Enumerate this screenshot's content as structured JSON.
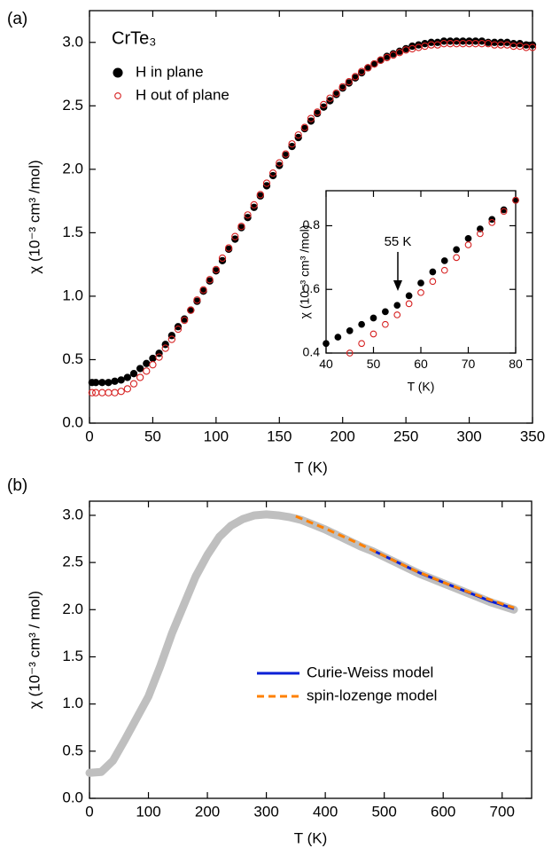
{
  "chart_data": [
    {
      "type": "scatter",
      "label": "(a)",
      "title": "CrTe₃",
      "xlabel": "T (K)",
      "ylabel": "χ (10⁻³ cm³ /mol)",
      "xlim": [
        0,
        350
      ],
      "xticks": [
        0,
        50,
        100,
        150,
        200,
        250,
        300,
        350
      ],
      "ylim": [
        0,
        3.25
      ],
      "yticks": [
        {
          "value": 0,
          "label": "0.0"
        },
        0.5,
        {
          "value": 1,
          "label": "1.0"
        },
        1.5,
        {
          "value": 2,
          "label": "2.0"
        },
        2.5,
        {
          "value": 3,
          "label": "3.0"
        }
      ],
      "legend": "upper left",
      "x": [
        2,
        5,
        10,
        15,
        20,
        25,
        30,
        35,
        40,
        45,
        50,
        55,
        60,
        65,
        70,
        75,
        80,
        85,
        90,
        95,
        100,
        105,
        110,
        115,
        120,
        125,
        130,
        135,
        140,
        145,
        150,
        155,
        160,
        165,
        170,
        175,
        180,
        185,
        190,
        195,
        200,
        205,
        210,
        215,
        220,
        225,
        230,
        235,
        240,
        245,
        250,
        255,
        260,
        265,
        270,
        275,
        280,
        285,
        290,
        295,
        300,
        305,
        310,
        315,
        320,
        325,
        330,
        335,
        340,
        345,
        350
      ],
      "series": [
        {
          "name": "H in plane",
          "color": "#000000",
          "marker": "filled",
          "values": [
            0.32,
            0.32,
            0.32,
            0.32,
            0.33,
            0.34,
            0.36,
            0.39,
            0.43,
            0.47,
            0.51,
            0.55,
            0.62,
            0.69,
            0.76,
            0.82,
            0.89,
            0.96,
            1.04,
            1.12,
            1.2,
            1.28,
            1.37,
            1.45,
            1.54,
            1.62,
            1.7,
            1.79,
            1.87,
            1.95,
            2.03,
            2.11,
            2.18,
            2.25,
            2.32,
            2.38,
            2.44,
            2.49,
            2.54,
            2.59,
            2.64,
            2.68,
            2.72,
            2.76,
            2.8,
            2.83,
            2.86,
            2.89,
            2.91,
            2.93,
            2.95,
            2.97,
            2.98,
            2.99,
            3.0,
            3.0,
            3.01,
            3.01,
            3.01,
            3.01,
            3.01,
            3.01,
            3.01,
            3.0,
            3.0,
            3.0,
            3.0,
            2.99,
            2.99,
            2.98,
            2.98
          ]
        },
        {
          "name": "H out of plane",
          "color": "#d62020",
          "marker": "open",
          "values": [
            0.24,
            0.24,
            0.24,
            0.24,
            0.24,
            0.25,
            0.27,
            0.31,
            0.36,
            0.41,
            0.46,
            0.52,
            0.59,
            0.66,
            0.74,
            0.81,
            0.89,
            0.97,
            1.05,
            1.13,
            1.21,
            1.3,
            1.38,
            1.47,
            1.55,
            1.64,
            1.72,
            1.8,
            1.89,
            1.97,
            2.05,
            2.12,
            2.2,
            2.27,
            2.33,
            2.4,
            2.45,
            2.51,
            2.56,
            2.6,
            2.65,
            2.69,
            2.73,
            2.77,
            2.8,
            2.83,
            2.86,
            2.88,
            2.9,
            2.92,
            2.94,
            2.95,
            2.96,
            2.97,
            2.98,
            2.98,
            2.99,
            2.99,
            2.99,
            2.99,
            2.99,
            2.99,
            2.99,
            2.99,
            2.98,
            2.98,
            2.98,
            2.97,
            2.97,
            2.96,
            2.96
          ]
        }
      ]
    },
    {
      "type": "scatter",
      "xlabel": "T (K)",
      "ylabel": "χ (10⁻³ cm³ /mol)",
      "annotation": "55 K",
      "xlim": [
        40,
        80
      ],
      "xticks": [
        40,
        50,
        60,
        70,
        80
      ],
      "ylim": [
        0.4,
        0.91
      ],
      "yticks": [
        0.4,
        0.6,
        0.8
      ],
      "x": [
        40,
        42.5,
        45,
        47.5,
        50,
        52.5,
        55,
        57.5,
        60,
        62.5,
        65,
        67.5,
        70,
        72.5,
        75,
        77.5,
        80
      ],
      "series": [
        {
          "color": "#000000",
          "marker": "filled",
          "values": [
            0.43,
            0.45,
            0.47,
            0.49,
            0.51,
            0.53,
            0.55,
            0.58,
            0.62,
            0.655,
            0.69,
            0.725,
            0.76,
            0.79,
            0.82,
            0.85,
            0.88
          ]
        },
        {
          "color": "#d62020",
          "marker": "open",
          "values": [
            null,
            null,
            0.4,
            0.43,
            0.46,
            0.49,
            0.52,
            0.555,
            0.59,
            0.625,
            0.66,
            0.7,
            0.74,
            0.775,
            0.81,
            0.845,
            0.88
          ]
        }
      ]
    },
    {
      "type": "line",
      "label": "(b)",
      "xlabel": "T (K)",
      "ylabel": "χ (10⁻³ cm³ / mol)",
      "xlim": [
        0,
        750
      ],
      "xticks": [
        0,
        100,
        200,
        300,
        400,
        500,
        600,
        700
      ],
      "ylim": [
        0,
        3.15
      ],
      "yticks": [
        {
          "value": 0,
          "label": "0.0"
        },
        0.5,
        {
          "value": 1,
          "label": "1.0"
        },
        1.5,
        {
          "value": 2,
          "label": "2.0"
        },
        2.5,
        {
          "value": 3,
          "label": "3.0"
        }
      ],
      "legend": "lower right",
      "series": [
        {
          "color": "#bfbfbf",
          "style": "thick",
          "x": [
            0,
            20,
            40,
            60,
            80,
            100,
            120,
            140,
            160,
            180,
            200,
            220,
            240,
            260,
            280,
            300,
            320,
            340,
            360,
            380,
            400,
            420,
            440,
            460,
            480,
            500,
            520,
            540,
            560,
            580,
            600,
            620,
            640,
            660,
            680,
            700,
            720
          ],
          "values": [
            0.27,
            0.28,
            0.4,
            0.62,
            0.85,
            1.08,
            1.4,
            1.75,
            2.05,
            2.35,
            2.58,
            2.77,
            2.89,
            2.96,
            3.0,
            3.01,
            3.0,
            2.98,
            2.95,
            2.9,
            2.85,
            2.79,
            2.73,
            2.67,
            2.62,
            2.56,
            2.5,
            2.44,
            2.38,
            2.33,
            2.28,
            2.23,
            2.18,
            2.13,
            2.08,
            2.04,
            2.0
          ]
        },
        {
          "name": "Curie-Weiss model",
          "color": "#0a1fd6",
          "style": "solid",
          "x": [
            480,
            520,
            560,
            600,
            640,
            680,
            720
          ],
          "values": [
            2.63,
            2.51,
            2.39,
            2.29,
            2.19,
            2.09,
            2.01
          ]
        },
        {
          "name": "spin-lozenge model",
          "color": "#ff8000",
          "style": "dashed",
          "x": [
            350,
            400,
            450,
            500,
            550,
            600,
            650,
            700,
            720
          ],
          "values": [
            2.99,
            2.86,
            2.72,
            2.57,
            2.42,
            2.29,
            2.17,
            2.06,
            2.02
          ]
        }
      ]
    }
  ]
}
